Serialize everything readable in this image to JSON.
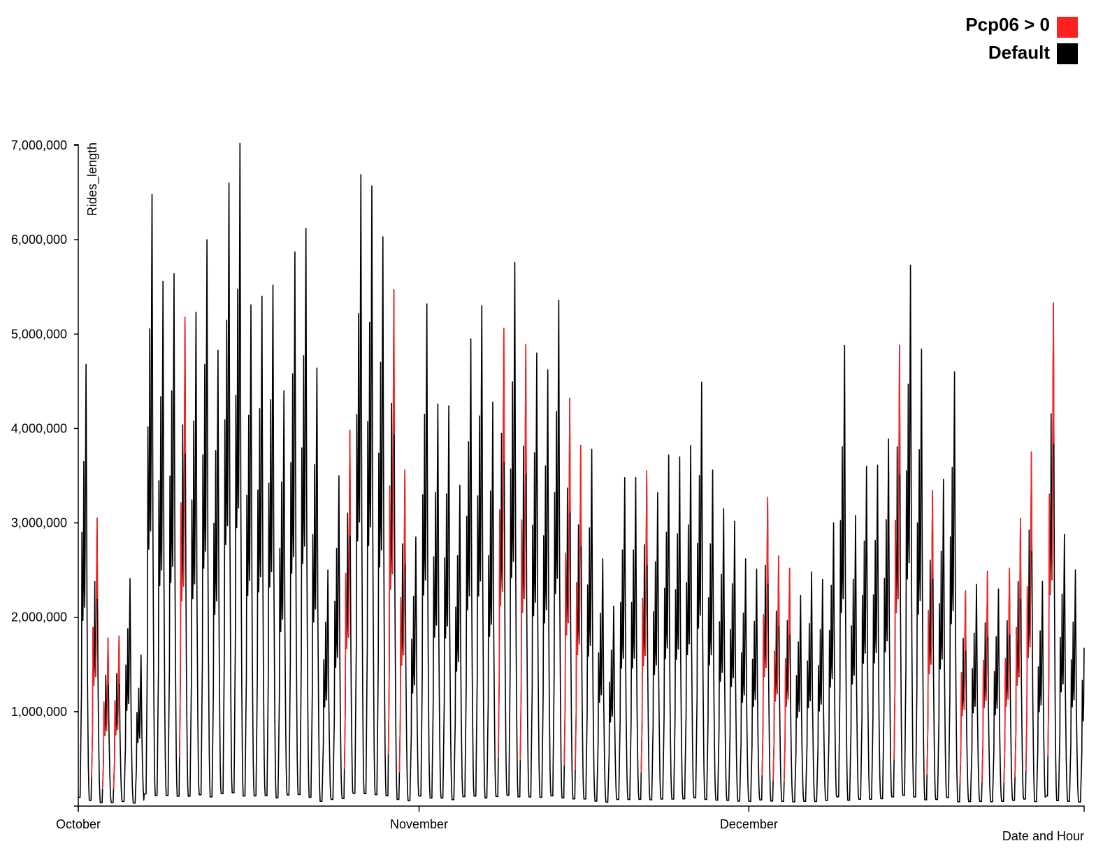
{
  "chart_data": {
    "type": "line",
    "title": "",
    "xlabel": "Date and Hour",
    "ylabel": "Rides_length",
    "ylim": [
      0,
      7000000
    ],
    "yticks": [
      1000000,
      2000000,
      3000000,
      4000000,
      5000000,
      6000000,
      7000000
    ],
    "ytick_labels": [
      "1,000,000",
      "2,000,000",
      "3,000,000",
      "4,000,000",
      "5,000,000",
      "6,000,000",
      "7,000,000"
    ],
    "xlim_days": [
      0,
      91.5
    ],
    "xticks": [
      {
        "label": "October",
        "day": 0
      },
      {
        "label": "November",
        "day": 31
      },
      {
        "label": "December",
        "day": 61
      }
    ],
    "legend": {
      "position": "top-right",
      "entries": [
        {
          "label": "Pcp06 > 0",
          "color": "#ff2020"
        },
        {
          "label": "Default",
          "color": "#000000"
        }
      ]
    },
    "daily_peaks": [
      4680000,
      3050000,
      1780000,
      1800000,
      2410000,
      1600000,
      6480000,
      5560000,
      5640000,
      5180000,
      5230000,
      6000000,
      4830000,
      6600000,
      7020000,
      5310000,
      5400000,
      5520000,
      4400000,
      5870000,
      6120000,
      4640000,
      2500000,
      3500000,
      3980000,
      6690000,
      6570000,
      6030000,
      5470000,
      3560000,
      2850000,
      5320000,
      4260000,
      4240000,
      3400000,
      4950000,
      5300000,
      4280000,
      5060000,
      5760000,
      4890000,
      4800000,
      4620000,
      5360000,
      4320000,
      3820000,
      3780000,
      2620000,
      2120000,
      3480000,
      3480000,
      3550000,
      3320000,
      3720000,
      3700000,
      3820000,
      4490000,
      3560000,
      3150000,
      3020000,
      2620000,
      2510000,
      3270000,
      2650000,
      2520000,
      2230000,
      2480000,
      2400000,
      3000000,
      4880000,
      3080000,
      3600000,
      3610000,
      3890000,
      4880000,
      5730000,
      4840000,
      3340000,
      3460000,
      4600000,
      2280000,
      2350000,
      2490000,
      2300000,
      2520000,
      3050000,
      3750000,
      2380000,
      5330000,
      2880000,
      2500000,
      2150000
    ],
    "precipitation_days": [
      1,
      2,
      3,
      9,
      24,
      28,
      29,
      38,
      40,
      44,
      45,
      51,
      62,
      63,
      64,
      74,
      77,
      80,
      82,
      84,
      85,
      86,
      88
    ]
  }
}
